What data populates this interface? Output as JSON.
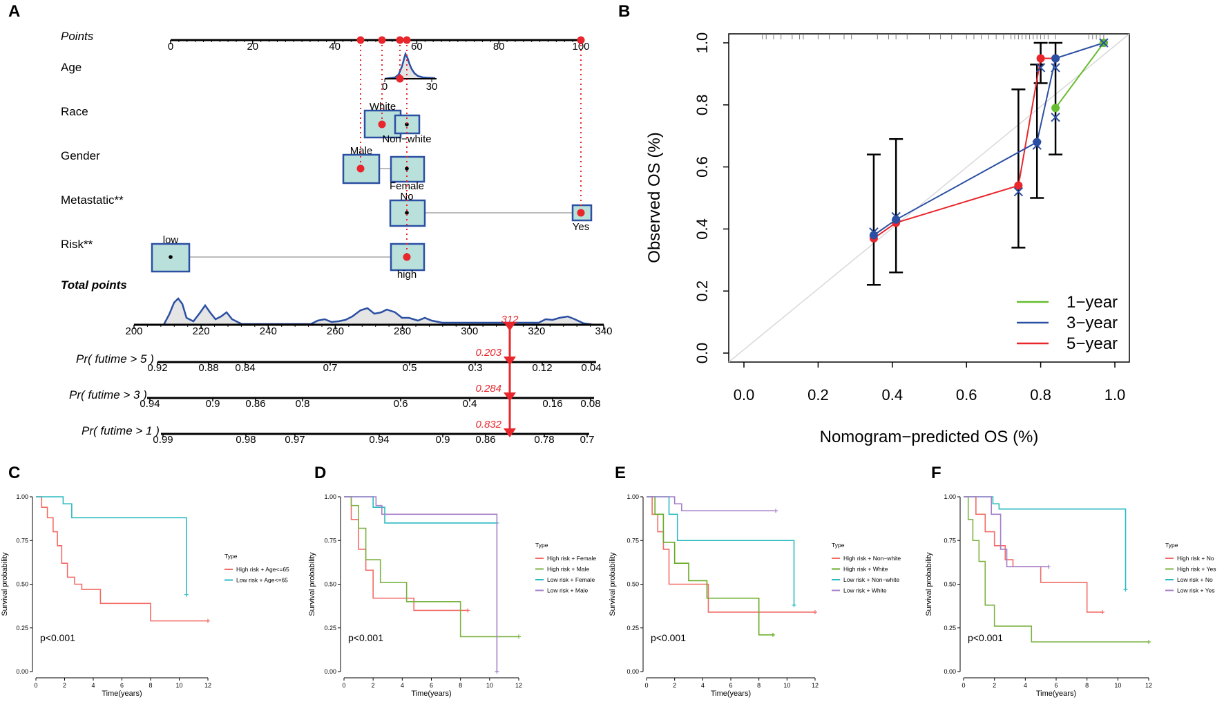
{
  "panels": {
    "A": "A",
    "B": "B",
    "C": "C",
    "D": "D",
    "E": "E",
    "F": "F"
  },
  "chart_data": [
    {
      "id": "nomogram",
      "type": "nomogram",
      "rows": {
        "points": {
          "label": "Points",
          "ticks": [
            "0",
            "20",
            "40",
            "60",
            "80",
            "100"
          ]
        },
        "age": {
          "label": "Age",
          "ticks": [
            "0",
            "30"
          ]
        },
        "race": {
          "label": "Race",
          "levels": [
            "White",
            "Non−white"
          ]
        },
        "gender": {
          "label": "Gender",
          "levels": [
            "Male",
            "Female"
          ]
        },
        "metastatic": {
          "label": "Metastatic**",
          "levels": [
            "No",
            "Yes"
          ]
        },
        "risk": {
          "label": "Risk**",
          "levels": [
            "low",
            "high"
          ]
        },
        "total": {
          "label": "Total points",
          "ticks": [
            "200",
            "220",
            "240",
            "260",
            "280",
            "300",
            "320",
            "340"
          ],
          "value": "312"
        },
        "pr5": {
          "label": "Pr( futime > 5 )",
          "ticks": [
            "0.92",
            "0.88",
            "0.84",
            "0.7",
            "0.5",
            "0.3",
            "0.12",
            "0.04"
          ],
          "value": "0.203"
        },
        "pr3": {
          "label": "Pr( futime > 3 )",
          "ticks": [
            "0.94",
            "0.9",
            "0.86",
            "0.8",
            "0.6",
            "0.4",
            "0.16",
            "0.08"
          ],
          "value": "0.284"
        },
        "pr1": {
          "label": "Pr( futime > 1 )",
          "ticks": [
            "0.99",
            "0.98",
            "0.97",
            "0.94",
            "0.9",
            "0.86",
            "0.78",
            "0.7"
          ],
          "value": "0.832"
        }
      },
      "selected_points": [
        46,
        52,
        56,
        57,
        100
      ]
    },
    {
      "id": "calibration",
      "type": "line",
      "xlabel": "Nomogram−predicted OS (%)",
      "ylabel": "Observed OS (%)",
      "xlim": [
        0,
        1
      ],
      "ylim": [
        0,
        1
      ],
      "xticks": [
        "0.0",
        "0.2",
        "0.4",
        "0.6",
        "0.8",
        "1.0"
      ],
      "yticks": [
        "0.0",
        "0.2",
        "0.4",
        "0.6",
        "0.8",
        "1.0"
      ],
      "legend": [
        "1−year",
        "3−year",
        "5−year"
      ],
      "series": [
        {
          "name": "1−year",
          "color": "#66bd2e",
          "x": [
            0.84,
            0.97
          ],
          "y": [
            0.79,
            1.0
          ]
        },
        {
          "name": "3−year",
          "color": "#2b4fa3",
          "x": [
            0.35,
            0.41,
            0.79,
            0.84,
            0.97
          ],
          "y": [
            0.38,
            0.43,
            0.68,
            0.95,
            1.0
          ]
        },
        {
          "name": "5−year",
          "color": "#e8262b",
          "x": [
            0.35,
            0.41,
            0.74,
            0.8,
            0.84
          ],
          "y": [
            0.37,
            0.42,
            0.54,
            0.95,
            0.95
          ]
        }
      ],
      "errorbars": [
        {
          "x": 0.35,
          "lo": 0.22,
          "hi": 0.64
        },
        {
          "x": 0.41,
          "lo": 0.26,
          "hi": 0.69
        },
        {
          "x": 0.74,
          "lo": 0.34,
          "hi": 0.85
        },
        {
          "x": 0.79,
          "lo": 0.5,
          "hi": 0.93
        },
        {
          "x": 0.8,
          "lo": 0.87,
          "hi": 1.0
        },
        {
          "x": 0.84,
          "lo": 0.64,
          "hi": 1.0
        }
      ],
      "x_markers": [
        {
          "x": 0.35,
          "y": 0.39
        },
        {
          "x": 0.41,
          "y": 0.44
        },
        {
          "x": 0.74,
          "y": 0.52
        },
        {
          "x": 0.79,
          "y": 0.67
        },
        {
          "x": 0.8,
          "y": 0.92
        },
        {
          "x": 0.84,
          "y": 0.76
        },
        {
          "x": 0.84,
          "y": 0.92
        },
        {
          "x": 0.97,
          "y": 1.0
        }
      ]
    },
    {
      "id": "km-age",
      "type": "line",
      "xlabel": "Time(years)",
      "ylabel": "Survival probability",
      "pvalue": "p<0.001",
      "legend_title": "Type",
      "series": [
        {
          "name": "High risk + Age<=65",
          "color": "#f26b66",
          "x": [
            0,
            0.4,
            0.8,
            1.2,
            1.5,
            1.8,
            2.2,
            2.7,
            3.2,
            4.5,
            8,
            12
          ],
          "y": [
            1,
            0.94,
            0.88,
            0.8,
            0.72,
            0.62,
            0.54,
            0.5,
            0.47,
            0.39,
            0.29,
            0.29
          ]
        },
        {
          "name": "Low risk + Age<=65",
          "color": "#2bbac2",
          "x": [
            0,
            1.9,
            2.5,
            10.5,
            10.5
          ],
          "y": [
            1,
            0.96,
            0.88,
            0.88,
            0.44
          ]
        }
      ]
    },
    {
      "id": "km-gender",
      "type": "line",
      "xlabel": "Time(years)",
      "ylabel": "Survival probability",
      "pvalue": "p<0.001",
      "legend_title": "Type",
      "series": [
        {
          "name": "High risk + Female",
          "color": "#f26b66",
          "x": [
            0,
            0.5,
            1.0,
            1.5,
            2.0,
            4.3,
            4.8,
            8.5
          ],
          "y": [
            1,
            0.87,
            0.7,
            0.58,
            0.42,
            0.42,
            0.35,
            0.35
          ]
        },
        {
          "name": "High risk + Male",
          "color": "#7cb342",
          "x": [
            0,
            0.5,
            1.0,
            1.5,
            2.5,
            4.3,
            8,
            10.5,
            12
          ],
          "y": [
            1,
            0.95,
            0.82,
            0.64,
            0.51,
            0.4,
            0.2,
            0.2,
            0.2
          ]
        },
        {
          "name": "Low risk + Female",
          "color": "#2bbac2",
          "x": [
            0,
            2,
            2.8,
            10.5
          ],
          "y": [
            1,
            0.94,
            0.85,
            0.85
          ]
        },
        {
          "name": "Low risk + Male",
          "color": "#a47ec8",
          "x": [
            0,
            2.2,
            2.6,
            10.5,
            10.5
          ],
          "y": [
            1,
            0.95,
            0.9,
            0.9,
            0.0
          ]
        }
      ]
    },
    {
      "id": "km-race",
      "type": "line",
      "xlabel": "Time(years)",
      "ylabel": "Survival probability",
      "pvalue": "p<0.001",
      "legend_title": "Type",
      "series": [
        {
          "name": "High risk + Non−white",
          "color": "#f26b66",
          "x": [
            0,
            0.4,
            0.8,
            1.2,
            1.6,
            2.2,
            4.4,
            12
          ],
          "y": [
            1,
            0.9,
            0.8,
            0.7,
            0.5,
            0.5,
            0.34,
            0.34
          ]
        },
        {
          "name": "High risk + White",
          "color": "#66aa22",
          "x": [
            0,
            0.6,
            1.2,
            2.0,
            3.0,
            4.3,
            7.8,
            8.0,
            9.0
          ],
          "y": [
            1,
            0.9,
            0.74,
            0.62,
            0.52,
            0.42,
            0.42,
            0.21,
            0.21
          ]
        },
        {
          "name": "Low risk + Non−white",
          "color": "#2bbac2",
          "x": [
            0,
            1.0,
            1.6,
            2.2,
            10.5,
            10.5
          ],
          "y": [
            1,
            1,
            0.9,
            0.75,
            0.75,
            0.38
          ]
        },
        {
          "name": "Low risk + White",
          "color": "#a47ec8",
          "x": [
            0,
            2.0,
            2.5,
            9.2
          ],
          "y": [
            1,
            0.96,
            0.92,
            0.92
          ]
        }
      ]
    },
    {
      "id": "km-metastatic",
      "type": "line",
      "xlabel": "Time(years)",
      "ylabel": "Survival probability",
      "pvalue": "p<0.001",
      "legend_title": "Type",
      "series": [
        {
          "name": "High risk + No",
          "color": "#f26b66",
          "x": [
            0,
            0.8,
            1.4,
            2.0,
            2.7,
            3.2,
            5.0,
            8.0,
            9.0
          ],
          "y": [
            1,
            0.9,
            0.8,
            0.72,
            0.64,
            0.6,
            0.51,
            0.34,
            0.34
          ]
        },
        {
          "name": "High risk + Yes",
          "color": "#7cb342",
          "x": [
            0,
            0.3,
            0.6,
            1.0,
            1.4,
            2.0,
            4.4,
            12
          ],
          "y": [
            1,
            0.87,
            0.75,
            0.63,
            0.38,
            0.26,
            0.17,
            0.17
          ]
        },
        {
          "name": "Low risk + No",
          "color": "#2bbac2",
          "x": [
            0,
            1.9,
            2.3,
            10.5,
            10.5
          ],
          "y": [
            1,
            0.96,
            0.93,
            0.93,
            0.47
          ]
        },
        {
          "name": "Low risk + Yes",
          "color": "#a47ec8",
          "x": [
            0,
            1.8,
            2.4,
            2.8,
            5.5
          ],
          "y": [
            1,
            0.9,
            0.7,
            0.6,
            0.6
          ]
        }
      ]
    }
  ]
}
